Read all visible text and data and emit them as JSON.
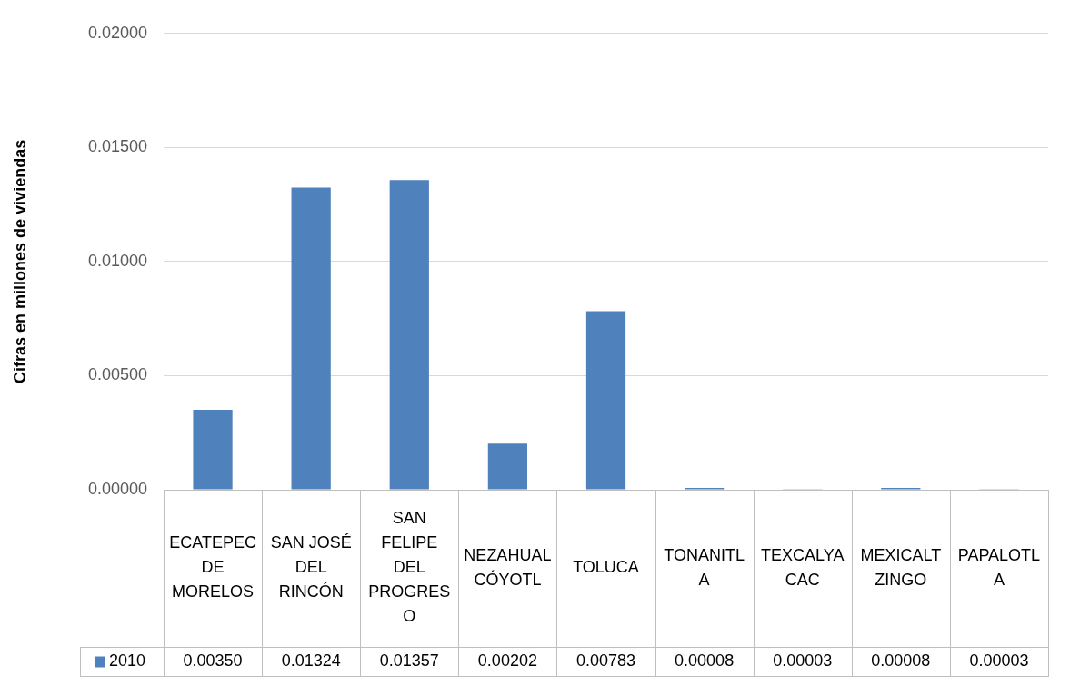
{
  "chart_data": {
    "type": "bar",
    "ylabel": "Cifras en millones de viviendas",
    "categories": [
      "ECATEPEC DE MORELOS",
      "SAN JOSÉ DEL RINCÓN",
      "SAN FELIPE DEL PROGRESO",
      "NEZAHUALCÓYOTL",
      "TOLUCA",
      "TONANITLA",
      "TEXCALYACAC",
      "MEXICALTZINGO",
      "PAPALOTLA"
    ],
    "series": [
      {
        "name": "2010",
        "color": "#4f81bd",
        "values": [
          0.0035,
          0.01324,
          0.01357,
          0.00202,
          0.00783,
          8e-05,
          3e-05,
          8e-05,
          3e-05
        ],
        "value_labels": [
          "0.00350",
          "0.01324",
          "0.01357",
          "0.00202",
          "0.00783",
          "0.00008",
          "0.00003",
          "0.00008",
          "0.00003"
        ]
      }
    ],
    "ylim": [
      0,
      0.02
    ],
    "yticks": [
      {
        "value": 0,
        "label": "0.00000"
      },
      {
        "value": 0.005,
        "label": "0.00500"
      },
      {
        "value": 0.01,
        "label": "0.01000"
      },
      {
        "value": 0.015,
        "label": "0.01500"
      },
      {
        "value": 0.02,
        "label": "0.02000"
      }
    ],
    "grid": "y",
    "legend": "bottom left"
  }
}
